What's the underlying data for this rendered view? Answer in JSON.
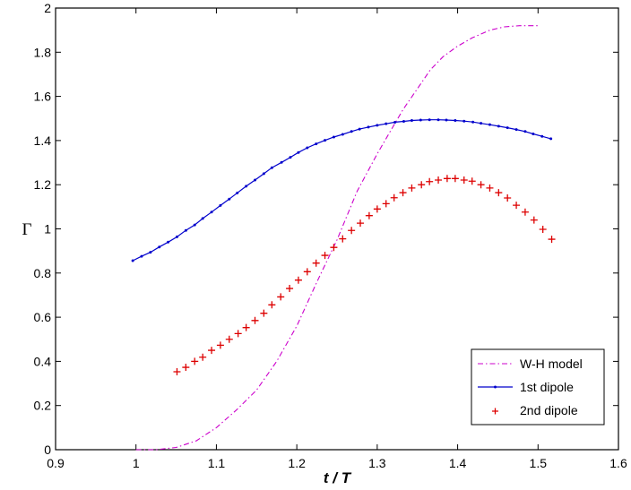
{
  "chart_data": {
    "type": "line",
    "title": "",
    "xlabel": "t / T",
    "ylabel": "Γ",
    "xlim": [
      0.9,
      1.6
    ],
    "ylim": [
      0,
      2
    ],
    "xticks": [
      "0.9",
      "1",
      "1.1",
      "1.2",
      "1.3",
      "1.4",
      "1.5",
      "1.6"
    ],
    "yticks": [
      "0",
      "0.2",
      "0.4",
      "0.6",
      "0.8",
      "1",
      "1.2",
      "1.4",
      "1.6",
      "1.8",
      "2"
    ],
    "grid": false,
    "legend_position": "bottom-right",
    "series": [
      {
        "name": "W-H model",
        "style": "dash-dot",
        "color": "#cc00cc",
        "x": [
          1.0,
          1.025,
          1.05,
          1.075,
          1.1,
          1.125,
          1.15,
          1.175,
          1.2,
          1.225,
          1.25,
          1.275,
          1.3,
          1.316,
          1.332,
          1.351,
          1.366,
          1.382,
          1.399,
          1.418,
          1.44,
          1.458,
          1.477,
          1.5
        ],
        "y": [
          0.0,
          0.0,
          0.01,
          0.04,
          0.1,
          0.18,
          0.27,
          0.4,
          0.56,
          0.76,
          0.95,
          1.17,
          1.34,
          1.44,
          1.54,
          1.64,
          1.72,
          1.78,
          1.825,
          1.865,
          1.9,
          1.915,
          1.92,
          1.92
        ]
      },
      {
        "name": "1st dipole",
        "style": "line-dot",
        "color": "#0000cc",
        "x": [
          0.996,
          1.007,
          1.018,
          1.029,
          1.04,
          1.051,
          1.062,
          1.073,
          1.083,
          1.094,
          1.105,
          1.116,
          1.126,
          1.137,
          1.148,
          1.159,
          1.169,
          1.181,
          1.192,
          1.202,
          1.213,
          1.224,
          1.235,
          1.246,
          1.257,
          1.268,
          1.278,
          1.289,
          1.3,
          1.311,
          1.322,
          1.333,
          1.343,
          1.354,
          1.365,
          1.376,
          1.386,
          1.397,
          1.408,
          1.419,
          1.429,
          1.44,
          1.451,
          1.462,
          1.473,
          1.484,
          1.494,
          1.505,
          1.516
        ],
        "y": [
          0.856,
          0.876,
          0.894,
          0.918,
          0.94,
          0.964,
          0.993,
          1.018,
          1.047,
          1.076,
          1.106,
          1.135,
          1.163,
          1.193,
          1.221,
          1.25,
          1.277,
          1.301,
          1.324,
          1.346,
          1.367,
          1.385,
          1.401,
          1.416,
          1.428,
          1.441,
          1.452,
          1.461,
          1.469,
          1.476,
          1.483,
          1.487,
          1.491,
          1.493,
          1.494,
          1.494,
          1.493,
          1.491,
          1.488,
          1.484,
          1.478,
          1.472,
          1.465,
          1.458,
          1.45,
          1.441,
          1.43,
          1.419,
          1.408
        ]
      },
      {
        "name": "2nd dipole",
        "style": "plus-marker",
        "color": "#dd0000",
        "x": [
          1.051,
          1.062,
          1.073,
          1.083,
          1.094,
          1.105,
          1.116,
          1.127,
          1.137,
          1.148,
          1.159,
          1.169,
          1.18,
          1.191,
          1.202,
          1.213,
          1.224,
          1.235,
          1.246,
          1.257,
          1.268,
          1.279,
          1.29,
          1.3,
          1.311,
          1.321,
          1.332,
          1.343,
          1.355,
          1.365,
          1.376,
          1.387,
          1.397,
          1.408,
          1.418,
          1.429,
          1.44,
          1.451,
          1.462,
          1.473,
          1.484,
          1.495,
          1.506,
          1.517
        ],
        "y": [
          0.353,
          0.373,
          0.4,
          0.419,
          0.45,
          0.473,
          0.5,
          0.526,
          0.553,
          0.585,
          0.618,
          0.656,
          0.692,
          0.73,
          0.768,
          0.806,
          0.845,
          0.88,
          0.916,
          0.955,
          0.993,
          1.026,
          1.06,
          1.09,
          1.114,
          1.141,
          1.164,
          1.185,
          1.2,
          1.214,
          1.221,
          1.228,
          1.228,
          1.221,
          1.216,
          1.2,
          1.185,
          1.164,
          1.14,
          1.107,
          1.076,
          1.04,
          0.998,
          0.953
        ]
      }
    ]
  }
}
